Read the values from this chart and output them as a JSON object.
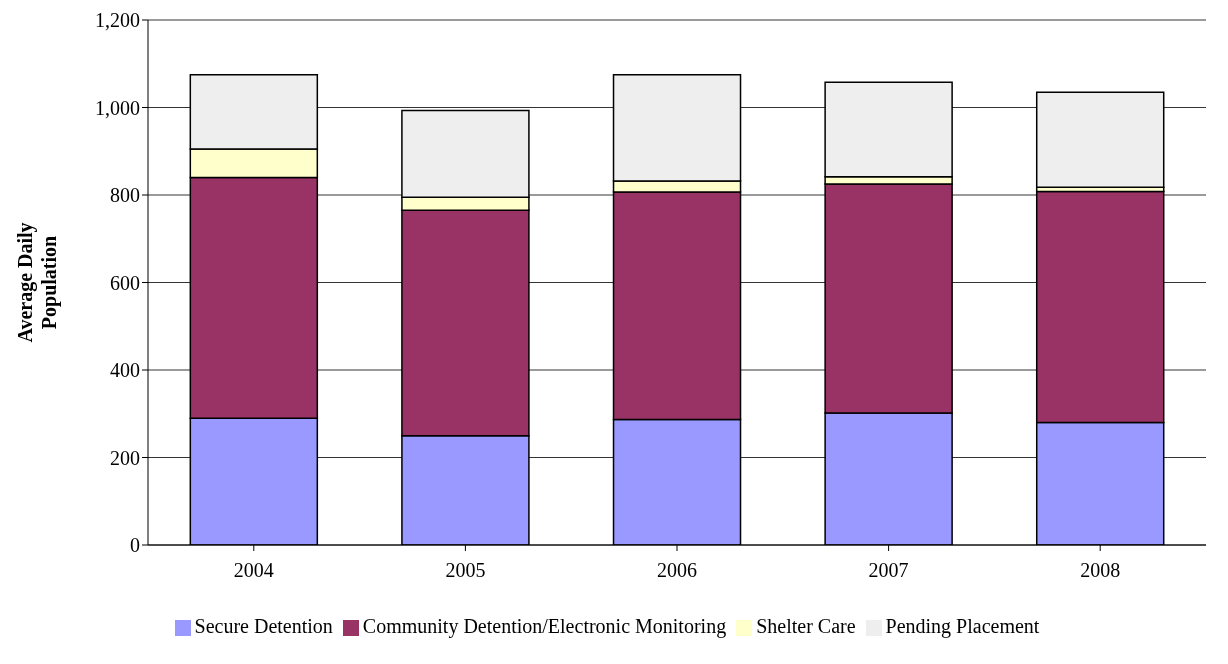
{
  "chart_data": {
    "type": "bar",
    "stacked": true,
    "ylabel": "Average Daily Population",
    "categories": [
      "2004",
      "2005",
      "2006",
      "2007",
      "2008"
    ],
    "series": [
      {
        "name": "Secure Detention",
        "color": "#9999ff",
        "values": [
          290,
          250,
          287,
          302,
          280
        ]
      },
      {
        "name": "Community Detention/Electronic Monitoring",
        "color": "#993366",
        "values": [
          550,
          515,
          520,
          523,
          528
        ]
      },
      {
        "name": "Shelter Care",
        "color": "#ffffcc",
        "values": [
          65,
          30,
          25,
          17,
          10
        ]
      },
      {
        "name": "Pending Placement",
        "color": "#eeeeee",
        "values": [
          170,
          198,
          243,
          216,
          217
        ]
      }
    ],
    "ylim": [
      0,
      1200
    ],
    "yticks": [
      0,
      200,
      400,
      600,
      800,
      {
        "value": 1000,
        "label": "1,000"
      },
      {
        "value": 1200,
        "label": "1,200"
      }
    ],
    "grid": "y",
    "legend": "bottom"
  }
}
